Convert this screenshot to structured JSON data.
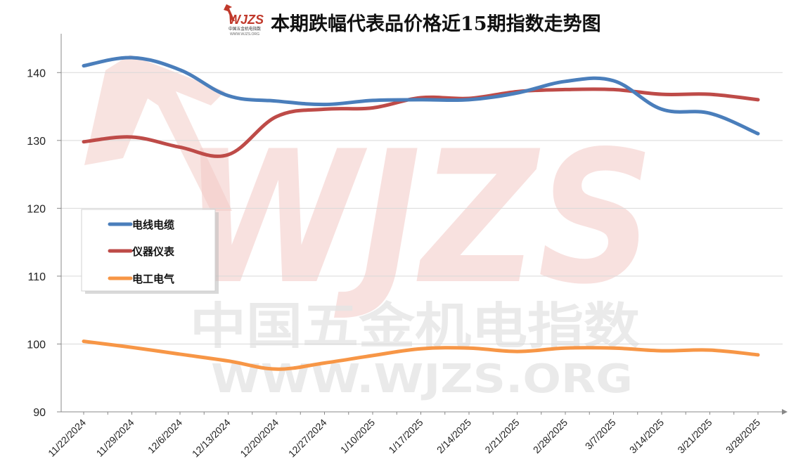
{
  "logo": {
    "text": "WJZS",
    "subtext": "中国五金机电指数",
    "url_text": "WWW.WJZS.ORG"
  },
  "watermark": {
    "line1": "中国五金机电指数",
    "line2": "WWW.WJZS.ORG",
    "letters": "WJZS"
  },
  "colors": {
    "series": [
      "#4a7ebb",
      "#be4b48",
      "#f79646"
    ],
    "grid": "#d9d9d9",
    "axis": "#888888",
    "watermark_red": "#f3c9c6",
    "watermark_gray": "#ececec"
  },
  "chart_data": {
    "type": "line",
    "title": "本期跌幅代表品价格近15期指数走势图",
    "xlabel": "",
    "ylabel": "",
    "categories": [
      "11/22/2024",
      "11/29/2024",
      "12/6/2024",
      "12/13/2024",
      "12/20/2024",
      "12/27/2024",
      "1/10/2025",
      "1/17/2025",
      "2/14/2025",
      "2/21/2025",
      "2/28/2025",
      "3/7/2025",
      "3/14/2025",
      "3/21/2025",
      "3/28/2025"
    ],
    "y_ticks": [
      "90",
      "100",
      "110",
      "120",
      "130",
      "140"
    ],
    "ylim": [
      90,
      145
    ],
    "grid": true,
    "smooth": true,
    "legend_position": "left-middle",
    "series": [
      {
        "name": "电线电缆",
        "values": [
          141.0,
          142.2,
          140.4,
          136.6,
          135.8,
          135.3,
          135.9,
          136.0,
          136.0,
          137.0,
          138.7,
          138.8,
          134.6,
          134.0,
          131.0
        ]
      },
      {
        "name": "仪器仪表",
        "values": [
          129.8,
          130.5,
          129.0,
          127.9,
          133.5,
          134.6,
          134.8,
          136.3,
          136.2,
          137.2,
          137.5,
          137.5,
          136.8,
          136.8,
          136.0
        ]
      },
      {
        "name": "电工电气",
        "values": [
          100.4,
          99.5,
          98.5,
          97.5,
          96.3,
          97.2,
          98.3,
          99.3,
          99.4,
          98.9,
          99.4,
          99.4,
          99.0,
          99.1,
          98.4
        ]
      }
    ]
  }
}
